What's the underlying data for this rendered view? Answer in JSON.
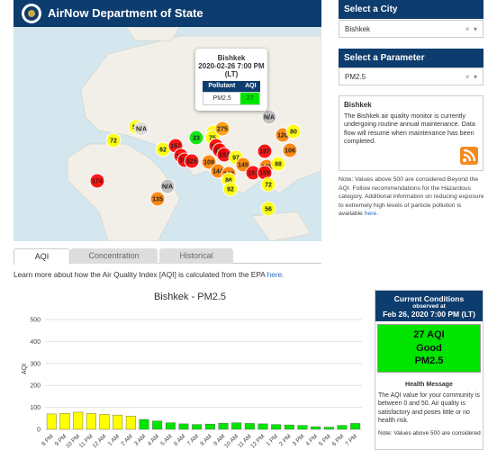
{
  "header": {
    "title": "AirNow Department of State"
  },
  "map": {
    "markers": [
      {
        "label": "51",
        "color": "#ffff00"
      },
      {
        "label": "N/A",
        "color": "#dddddd"
      },
      {
        "label": "72",
        "color": "#ffff00"
      },
      {
        "label": "62",
        "color": "#ffff00"
      },
      {
        "label": "157",
        "color": "#ff0000"
      },
      {
        "label": "181",
        "color": "#ff0000"
      },
      {
        "label": "166",
        "color": "#ff0000"
      },
      {
        "label": "125",
        "color": "#ff0000"
      },
      {
        "label": "23",
        "color": "#00e400"
      },
      {
        "label": "88",
        "color": "#ffff00"
      },
      {
        "label": "75",
        "color": "#ffff00"
      },
      {
        "label": "275",
        "color": "#ff9a00"
      },
      {
        "label": "151",
        "color": "#ff0000"
      },
      {
        "label": "169",
        "color": "#ff0000"
      },
      {
        "label": "153",
        "color": "#ff0000"
      },
      {
        "label": "97",
        "color": "#ffff00"
      },
      {
        "label": "109",
        "color": "#ff7e00"
      },
      {
        "label": "144",
        "color": "#ff7e00"
      },
      {
        "label": "147",
        "color": "#ff7e00"
      },
      {
        "label": "86",
        "color": "#ffff00"
      },
      {
        "label": "145",
        "color": "#ff7e00"
      },
      {
        "label": "167",
        "color": "#ff0000"
      },
      {
        "label": "140",
        "color": "#ff7e00"
      },
      {
        "label": "153",
        "color": "#ff0000"
      },
      {
        "label": "155",
        "color": "#ff0000"
      },
      {
        "label": "88",
        "color": "#ffff00"
      },
      {
        "label": "106",
        "color": "#ff7e00"
      },
      {
        "label": "120",
        "color": "#ff7e00"
      },
      {
        "label": "80",
        "color": "#ffff00"
      },
      {
        "label": "N/A",
        "color": "#bbbbbb"
      },
      {
        "label": "92",
        "color": "#ffff00"
      },
      {
        "label": "72",
        "color": "#ffff00"
      },
      {
        "label": "56",
        "color": "#ffff00"
      },
      {
        "label": "174",
        "color": "#ff0000"
      },
      {
        "label": "135",
        "color": "#ff7e00"
      },
      {
        "label": "N/A",
        "color": "#bbbbbb"
      }
    ],
    "popup": {
      "city": "Bishkek",
      "time": "2020-02-26 7:00 PM (LT)",
      "col1": "Pollutant",
      "col2": "AQI",
      "pollutant": "PM2.5",
      "aqi": "27",
      "aqi_color": "#00e400"
    }
  },
  "city_select": {
    "title": "Select a City",
    "value": "Bishkek"
  },
  "param_select": {
    "title": "Select a Parameter",
    "value": "PM2.5"
  },
  "info": {
    "title": "Bishkek",
    "text": "The Bishkek air quality monitor is currently undergoing routine annual maintenance. Data flow will resume when maintenance has been completed."
  },
  "note": {
    "text": "Note: Values above 500 are considered Beyond the AQI. Follow recommendations for the Hazardous category. Additional information on reducing exposure to extremely high levels of particle pollution is available ",
    "link": "here."
  },
  "tabs": [
    "AQI",
    "Concentration",
    "Historical"
  ],
  "learn": {
    "text": "Learn more about how the Air Quality Index [AQI] is calculated from the EPA ",
    "link": "here."
  },
  "chart": {
    "type": "bar",
    "title": "Bishkek - PM2.5",
    "ylabel": "AQI",
    "categories": [
      "8 PM",
      "9 PM",
      "10 PM",
      "11 PM",
      "12 AM",
      "1 AM",
      "2 AM",
      "3 AM",
      "4 AM",
      "5 AM",
      "6 AM",
      "7 AM",
      "8 AM",
      "9 AM",
      "10 AM",
      "11 AM",
      "12 PM",
      "1 PM",
      "2 PM",
      "3 PM",
      "4 PM",
      "5 PM",
      "6 PM",
      "7 PM"
    ],
    "values": [
      70,
      73,
      78,
      72,
      68,
      65,
      60,
      45,
      38,
      30,
      25,
      22,
      24,
      28,
      30,
      27,
      25,
      22,
      20,
      18,
      12,
      10,
      18,
      27
    ],
    "colors": [
      "#ffff00",
      "#ffff00",
      "#ffff00",
      "#ffff00",
      "#ffff00",
      "#ffff00",
      "#ffff00",
      "#00e400",
      "#00e400",
      "#00e400",
      "#00e400",
      "#00e400",
      "#00e400",
      "#00e400",
      "#00e400",
      "#00e400",
      "#00e400",
      "#00e400",
      "#00e400",
      "#00e400",
      "#00e400",
      "#00e400",
      "#00e400",
      "#00e400"
    ],
    "ylim": [
      0,
      500
    ],
    "yticks": [
      0,
      100,
      200,
      300,
      400,
      500
    ],
    "grid": true
  },
  "current": {
    "title": "Current Conditions",
    "observed": "observed at",
    "time": "Feb 26, 2020 7:00 PM (LT)",
    "aqi": "27 AQI",
    "category": "Good",
    "pollutant": "PM2.5",
    "color": "#00e400",
    "health_title": "Health Message",
    "health_text": "The AQI value for your community is between 0 and 50. Air quality is satisfactory and poses little or no health risk.",
    "note": "Note: Values above 500 are considered"
  }
}
